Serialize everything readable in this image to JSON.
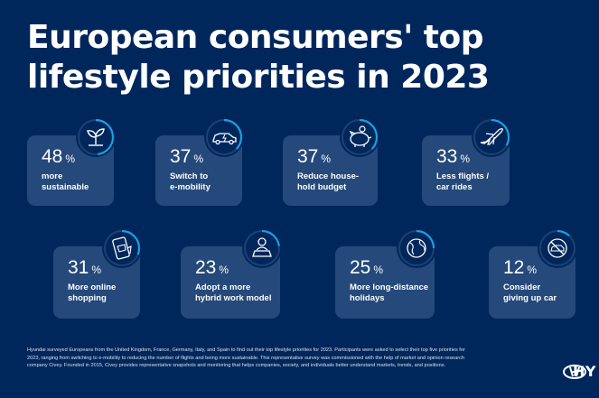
{
  "title_line1": "European consumers' top",
  "title_line2": "lifestyle priorities in 2023",
  "chart_data": {
    "type": "bar",
    "title": "European consumers' top lifestyle priorities in 2023",
    "unit": "%",
    "categories": [
      "more sustainable",
      "Switch to e-mobility",
      "Reduce house-hold budget",
      "Less flights / car rides",
      "More online shopping",
      "Adopt a more hybrid work model",
      "More long-distance holidays",
      "Consider giving up car"
    ],
    "values": [
      48,
      37,
      37,
      33,
      31,
      23,
      25,
      12
    ]
  },
  "cards": [
    {
      "value": "48",
      "unit": "%",
      "line1": "more",
      "line2": "sustainable",
      "icon": "plant-icon"
    },
    {
      "value": "37",
      "unit": "%",
      "line1": "Switch to",
      "line2": "e-mobility",
      "icon": "electric-car-icon"
    },
    {
      "value": "37",
      "unit": "%",
      "line1": "Reduce house-",
      "line2": "hold budget",
      "icon": "piggy-bank-icon"
    },
    {
      "value": "33",
      "unit": "%",
      "line1": "Less flights /",
      "line2": "car rides",
      "icon": "airplane-icon"
    },
    {
      "value": "31",
      "unit": "%",
      "line1": "More online",
      "line2": "shopping",
      "icon": "phone-shopping-icon"
    },
    {
      "value": "23",
      "unit": "%",
      "line1": "Adopt a more",
      "line2": "hybrid work model",
      "icon": "laptop-worker-icon"
    },
    {
      "value": "25",
      "unit": "%",
      "line1": "More long-distance",
      "line2": "holidays",
      "icon": "globe-icon"
    },
    {
      "value": "12",
      "unit": "%",
      "line1": "Consider",
      "line2": "giving up car",
      "icon": "no-car-icon"
    }
  ],
  "footnote": "Hyundai surveyed Europeans from the United Kingdom, France, Germany, Italy, and Spain to find out their top lifestyle priorities for 2023. Participants were asked to select their top five priorities for 2023, ranging from switching to e-mobility to reducing the number of flights and being more sustainable. This representative survey was commissioned with the help of market and opinion research company Civey. Founded in 2015, Civey provides representative snapshots and monitoring that helps companies, society, and individuals better understand markets, trends, and positions.",
  "logo_text": "HY",
  "colors": {
    "background": "#00275c",
    "accent": "#1a9fe0",
    "card": "#4a6d99"
  }
}
